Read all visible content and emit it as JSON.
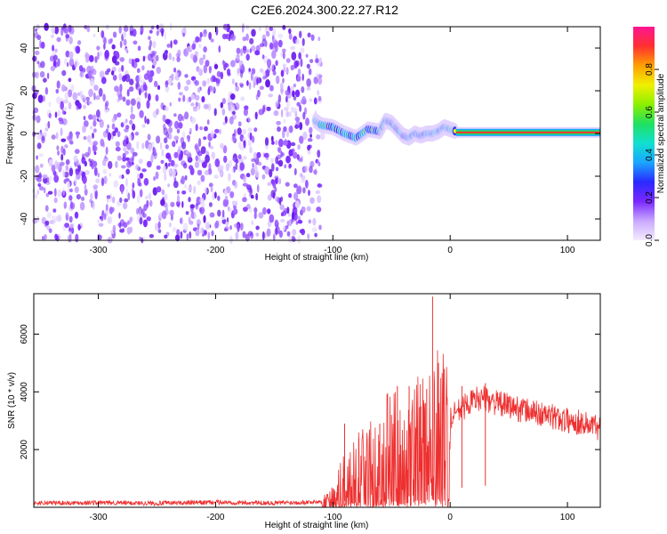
{
  "title": "C2E6.2024.300.22.27.R12",
  "chart_data": [
    {
      "type": "heatmap",
      "xlabel": "Height of straight line (km)",
      "ylabel": "Frequency (Hz)",
      "xlim": [
        -355,
        128
      ],
      "ylim": [
        -50,
        50
      ],
      "xticks": [
        -300,
        -200,
        -100,
        0,
        100
      ],
      "yticks": [
        -40,
        -20,
        0,
        20,
        40
      ],
      "noise_region_x": [
        -355,
        -110
      ],
      "signal_track": {
        "x": [
          -115,
          -110,
          -100,
          -90,
          -80,
          -70,
          -60,
          -55,
          -50,
          -45,
          -40,
          -35,
          -30,
          -25,
          -20,
          -15,
          -10,
          -5,
          0,
          5
        ],
        "frequency_hz": [
          6,
          4,
          3,
          0,
          -2,
          2,
          1,
          6,
          5,
          2,
          -1,
          -2,
          0,
          -1,
          0,
          0,
          1,
          3,
          2,
          1
        ]
      },
      "steady_line": {
        "x": [
          5,
          128
        ],
        "frequency_hz": 0.5
      },
      "colorbar": {
        "label": "Normalized spectral amplitude",
        "ticks": [
          "0.0",
          "0.2",
          "0.4",
          "0.6",
          "0.8"
        ],
        "range": [
          0,
          1
        ],
        "colors": [
          "#f4ecff",
          "#c9a8ff",
          "#7a28ff",
          "#2a2aff",
          "#1aa6ff",
          "#10e0d0",
          "#20e060",
          "#8cf000",
          "#f0f000",
          "#ffa000",
          "#ff3030",
          "#ff1493"
        ]
      },
      "grid": false
    },
    {
      "type": "line",
      "xlabel": "Height of straight line (km)",
      "ylabel": "SNR (10 * v/v)",
      "xlim": [
        -355,
        128
      ],
      "ylim": [
        0,
        7400
      ],
      "xticks": [
        -300,
        -200,
        -100,
        0,
        100
      ],
      "yticks": [
        2000,
        4000,
        6000
      ],
      "series": [
        {
          "color": "#ee3030",
          "x": [
            -355,
            -300,
            -250,
            -200,
            -150,
            -120,
            -110,
            -100,
            -95,
            -90,
            -85,
            -80,
            -75,
            -70,
            -65,
            -60,
            -55,
            -50,
            -45,
            -40,
            -35,
            -30,
            -25,
            -20,
            -15,
            -10,
            -5,
            0,
            5,
            10,
            15,
            20,
            25,
            30,
            35,
            40,
            50,
            60,
            70,
            80,
            90,
            100,
            110,
            120,
            128
          ],
          "values": [
            150,
            160,
            140,
            170,
            150,
            180,
            200,
            400,
            700,
            1100,
            1400,
            1700,
            1500,
            1800,
            1900,
            1700,
            2100,
            2300,
            2000,
            1600,
            1900,
            2300,
            2600,
            2700,
            3000,
            2900,
            3200,
            3000,
            3300,
            3400,
            3600,
            3700,
            3800,
            3750,
            3700,
            3600,
            3500,
            3400,
            3300,
            3200,
            3100,
            3000,
            2950,
            2850,
            2750
          ]
        }
      ],
      "spikes": [
        {
          "x": -90,
          "value": 2900
        },
        {
          "x": -78,
          "value": 2400
        },
        {
          "x": -60,
          "value": 2900
        },
        {
          "x": -50,
          "value": 3200
        },
        {
          "x": -45,
          "value": 4200
        },
        {
          "x": -35,
          "value": 4200
        },
        {
          "x": -25,
          "value": 3500
        },
        {
          "x": -20,
          "value": 4100
        },
        {
          "x": -15,
          "value": 7300
        },
        {
          "x": -10,
          "value": 5000
        },
        {
          "x": -5,
          "value": 4800
        },
        {
          "x": 10,
          "value": 4200
        },
        {
          "x": 30,
          "value": 4300
        }
      ],
      "grid": false
    }
  ]
}
